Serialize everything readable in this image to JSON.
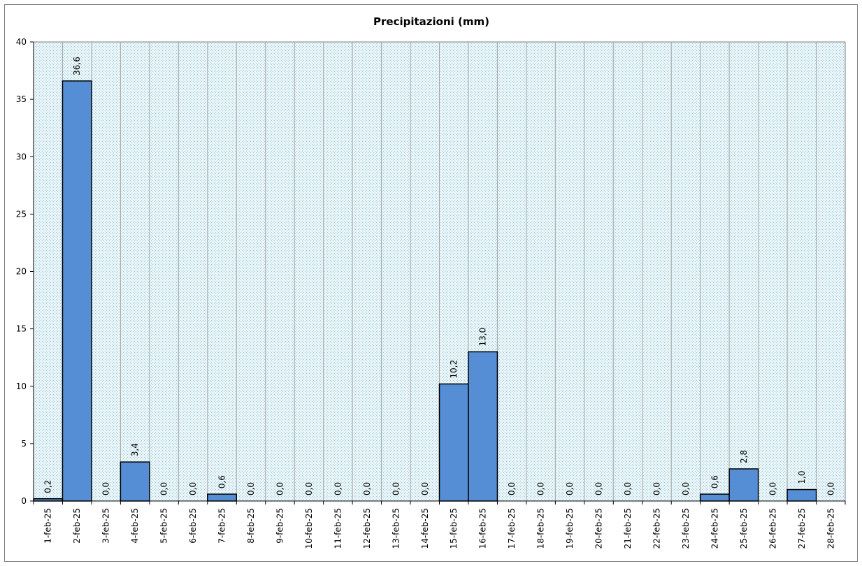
{
  "chart_data": {
    "type": "bar",
    "title": "Precipitazioni  (mm)",
    "xlabel": "",
    "ylabel": "",
    "ylim": [
      0,
      40
    ],
    "yticks": [
      "0",
      "5",
      "10",
      "15",
      "20",
      "25",
      "30",
      "35",
      "40"
    ],
    "grid": "vertical",
    "categories": [
      "1-feb-25",
      "2-feb-25",
      "3-feb-25",
      "4-feb-25",
      "5-feb-25",
      "6-feb-25",
      "7-feb-25",
      "8-feb-25",
      "9-feb-25",
      "10-feb-25",
      "11-feb-25",
      "12-feb-25",
      "13-feb-25",
      "14-feb-25",
      "15-feb-25",
      "16-feb-25",
      "17-feb-25",
      "18-feb-25",
      "19-feb-25",
      "20-feb-25",
      "21-feb-25",
      "22-feb-25",
      "23-feb-25",
      "24-feb-25",
      "25-feb-25",
      "26-feb-25",
      "27-feb-25",
      "28-feb-25"
    ],
    "values": [
      0.2,
      36.6,
      0.0,
      3.4,
      0.0,
      0.0,
      0.6,
      0.0,
      0.0,
      0.0,
      0.0,
      0.0,
      0.0,
      0.0,
      10.2,
      13.0,
      0.0,
      0.0,
      0.0,
      0.0,
      0.0,
      0.0,
      0.0,
      0.6,
      2.8,
      0.0,
      1.0,
      0.0
    ],
    "data_labels": [
      "0,2",
      "36,6",
      "0,0",
      "3,4",
      "0,0",
      "0,0",
      "0,6",
      "0,0",
      "0,0",
      "0,0",
      "0,0",
      "0,0",
      "0,0",
      "0,0",
      "10,2",
      "13,0",
      "0,0",
      "0,0",
      "0,0",
      "0,0",
      "0,0",
      "0,0",
      "0,0",
      "0,6",
      "2,8",
      "0,0",
      "1,0",
      "0,0"
    ],
    "colors": {
      "bar": "#558ed5",
      "bar_border": "#000000",
      "plot_bg": "#dbeef3",
      "grid": "#a6a6a6"
    }
  }
}
